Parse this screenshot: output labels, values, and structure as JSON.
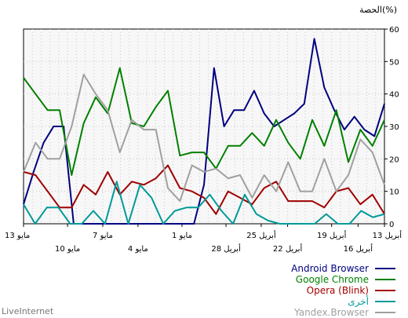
{
  "chart_data": {
    "type": "line",
    "ylabel": "الحصة(%)",
    "ylim": [
      0,
      60
    ],
    "yticks": [
      0,
      10,
      20,
      30,
      40,
      50,
      60
    ],
    "x_count": 42,
    "x_labels_row1": [
      {
        "index": 0,
        "text": "13 مايو"
      },
      {
        "index": 9,
        "text": "7 مايو"
      },
      {
        "index": 18,
        "text": "1 مايو"
      },
      {
        "index": 27,
        "text": "25 أبريل"
      },
      {
        "index": 35,
        "text": "19 أبريل"
      },
      {
        "index": 41,
        "text": "13 أبريل"
      }
    ],
    "x_labels_row2": [
      {
        "index": 5,
        "text": "10 مايو"
      },
      {
        "index": 13,
        "text": "4 مايو"
      },
      {
        "index": 23,
        "text": "28 أبريل"
      },
      {
        "index": 30,
        "text": "22 أبريل"
      },
      {
        "index": 38,
        "text": "16 أبريل"
      }
    ],
    "grid": true,
    "legend_position": "bottom-right",
    "series": [
      {
        "name": "Android Browser",
        "color": "#000080",
        "values": [
          6,
          16,
          25,
          30,
          30,
          0,
          0,
          0,
          0,
          0,
          0,
          0,
          0,
          0,
          0,
          0,
          0,
          0,
          12,
          48,
          30,
          35,
          35,
          41,
          34,
          30,
          32,
          34,
          37,
          57,
          42,
          35,
          29,
          33,
          29,
          27,
          37
        ]
      },
      {
        "name": "Google Chrome",
        "color": "#008000",
        "values": [
          45,
          40,
          35,
          35,
          15,
          31,
          39,
          34,
          48,
          31,
          30,
          36,
          41,
          21,
          22,
          22,
          17,
          24,
          24,
          28,
          24,
          32,
          25,
          20,
          32,
          24,
          35,
          19,
          29,
          24,
          32
        ]
      },
      {
        "name": "Opera (Blink)",
        "color": "#a00000",
        "values": [
          16,
          15,
          10,
          5,
          5,
          12,
          9,
          16,
          9,
          13,
          12,
          14,
          18,
          11,
          10,
          8,
          3,
          10,
          8,
          6,
          11,
          13,
          7,
          7,
          7,
          5,
          10,
          11,
          6,
          9,
          3
        ]
      },
      {
        "name": "أخرى",
        "color": "#009999",
        "values": [
          6,
          0,
          5,
          5,
          0,
          0,
          4,
          0,
          13,
          0,
          12,
          8,
          0,
          4,
          5,
          5,
          9,
          4,
          0,
          9,
          3,
          1,
          0,
          0,
          0,
          0,
          3,
          0,
          0,
          4,
          2,
          3
        ]
      },
      {
        "name": "Yandex.Browser",
        "color": "#a0a0a0",
        "values": [
          16,
          25,
          20,
          20,
          30,
          46,
          40,
          35,
          22,
          32,
          29,
          29,
          11,
          7,
          18,
          16,
          17,
          14,
          15,
          8,
          15,
          10,
          19,
          10,
          10,
          20,
          10,
          15,
          26,
          22,
          12
        ]
      }
    ]
  },
  "footer": {
    "brand": "LiveInternet"
  }
}
